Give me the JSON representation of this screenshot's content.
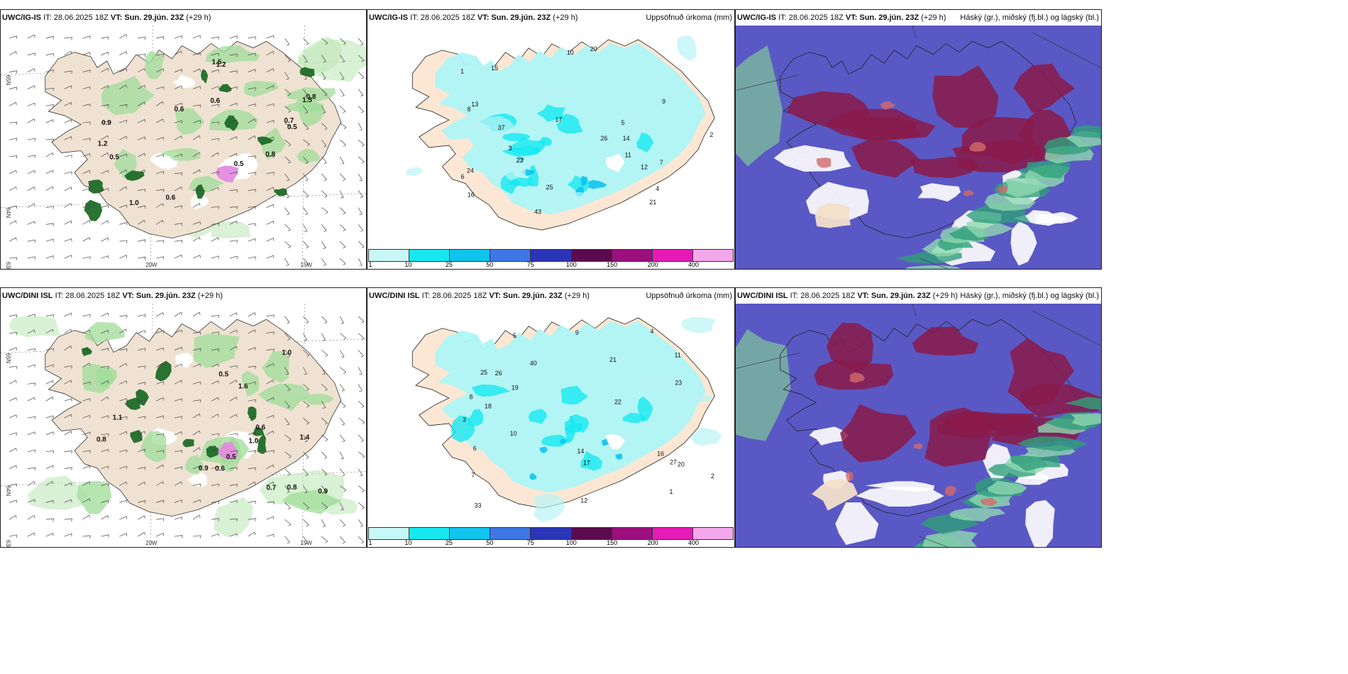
{
  "rows": [
    {
      "model": "UWC/IG-IS",
      "it_label": "IT: 28.06.2025 18Z",
      "vt_prefix": "VT:",
      "vt_value": "Sun. 29.jún. 23Z",
      "lead": "(+29 h)",
      "panel2_title": "Uppsöfnuð úrkoma (mm)",
      "panel3_title": "Háský (gr.), miðský (fj.bl.) og lágský (bl.)"
    },
    {
      "model": "UWC/DINI ISL",
      "it_label": "IT: 28.06.2025 18Z",
      "vt_prefix": "VT:",
      "vt_value": "Sun. 29.jún. 23Z",
      "lead": "(+29 h)",
      "panel2_title": "Uppsöfnuð úrkoma (mm)",
      "panel3_title": "Háský (gr.), miðský (fj.bl.) og lágský (bl.)"
    }
  ],
  "axes": {
    "lon1": "20W",
    "lon2": "15W",
    "lat1": "65N",
    "lat2": "64N",
    "lat3": "63N"
  },
  "colorbar": {
    "ticks": [
      "1",
      "10",
      "25",
      "50",
      "75",
      "100",
      "150",
      "200",
      "400"
    ],
    "colors": [
      "#c8f7f7",
      "#17e8f0",
      "#10c4ee",
      "#3f76e6",
      "#2a35b8",
      "#5c0b4e",
      "#9c0f7f",
      "#e61ab6",
      "#f4a8ec"
    ]
  },
  "wind_labels_top": [
    "0.5",
    "0.6",
    "0.5",
    "0.6",
    "0.8",
    "0.8",
    "0.6",
    "1.5",
    "1.2",
    "0.9",
    "1.0",
    "0.7",
    "1.5",
    "1.2",
    "0.5"
  ],
  "wind_labels_bottom": [
    "0.5",
    "0.5",
    "0.6",
    "0.6",
    "0.8",
    "0.9",
    "1.0",
    "1.4",
    "1.1",
    "0.7",
    "0.8",
    "0.9",
    "1.0",
    "1.6"
  ],
  "precip_labels_top": [
    "1",
    "2",
    "3",
    "4",
    "5",
    "6",
    "7",
    "8",
    "9",
    "10",
    "11",
    "12",
    "13",
    "14",
    "15",
    "16",
    "17",
    "20",
    "21",
    "23",
    "24",
    "25",
    "26",
    "37",
    "43"
  ],
  "precip_labels_bottom": [
    "1",
    "2",
    "3",
    "4",
    "5",
    "6",
    "7",
    "8",
    "9",
    "10",
    "11",
    "12",
    "14",
    "16",
    "17",
    "18",
    "19",
    "20",
    "21",
    "22",
    "23",
    "25",
    "26",
    "27",
    "33",
    "40"
  ]
}
